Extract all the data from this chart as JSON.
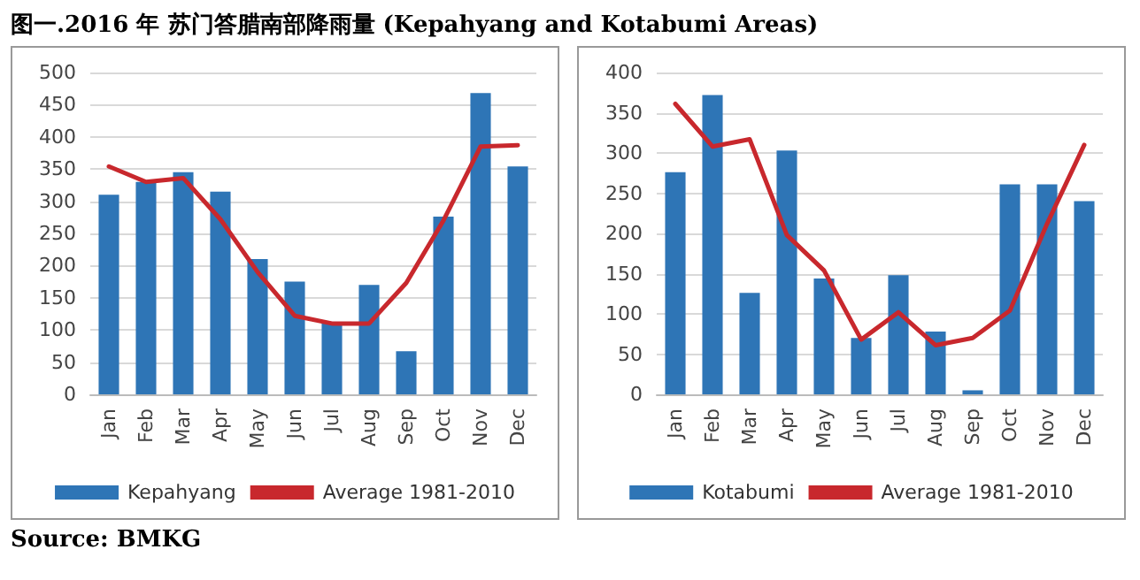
{
  "chart_data": [
    {
      "type": "bar",
      "title": "图一.2016 年 苏门答腊南部降雨量 (Kepahyang and Kotabumi Areas)",
      "annotations": [
        "Source: BMKG"
      ],
      "categories": [
        "Jan",
        "Feb",
        "Mar",
        "Apr",
        "May",
        "Jun",
        "Jul",
        "Aug",
        "Sep",
        "Oct",
        "Nov",
        "Dec"
      ],
      "series": [
        {
          "name": "Kepahyang",
          "color": "#2e75b6",
          "values": [
            310,
            330,
            345,
            315,
            210,
            175,
            110,
            170,
            67,
            276,
            468,
            354
          ]
        },
        {
          "name": "Average 1981-2010",
          "type": "line",
          "color": "#c8282d",
          "values": [
            354,
            330,
            336,
            272,
            190,
            122,
            110,
            110,
            173,
            270,
            385,
            387
          ]
        }
      ],
      "ylim": [
        0,
        500
      ],
      "yticks": [
        0,
        50,
        100,
        150,
        200,
        250,
        300,
        350,
        400,
        450,
        500
      ],
      "grid": "y",
      "legend": "bottom",
      "marker": "none"
    },
    {
      "type": "bar",
      "categories": [
        "Jan",
        "Feb",
        "Mar",
        "Apr",
        "May",
        "Jun",
        "Jul",
        "Aug",
        "Sep",
        "Oct",
        "Nov",
        "Dec"
      ],
      "series": [
        {
          "name": "Kotabumi",
          "color": "#2e75b6",
          "values": [
            276,
            372,
            126,
            303,
            144,
            70,
            148,
            78,
            5,
            261,
            261,
            240
          ]
        },
        {
          "name": "Average 1981-2010",
          "type": "line",
          "color": "#c8282d",
          "values": [
            361,
            308,
            317,
            198,
            154,
            68,
            102,
            61,
            70,
            104,
            212,
            310
          ]
        }
      ],
      "ylim": [
        0,
        400
      ],
      "yticks": [
        0,
        50,
        100,
        150,
        200,
        250,
        300,
        350,
        400
      ],
      "grid": "y",
      "legend": "bottom",
      "marker": "none"
    }
  ]
}
